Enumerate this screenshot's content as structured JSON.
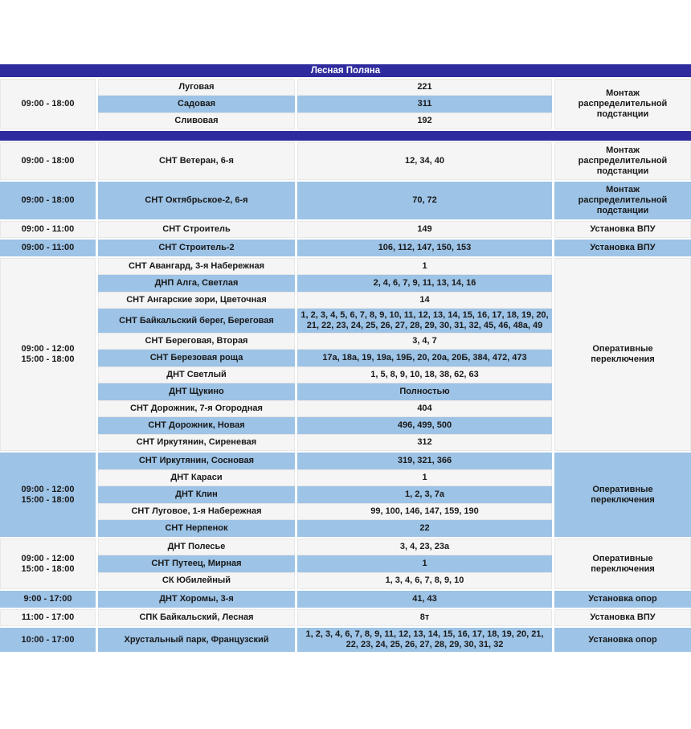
{
  "table": {
    "title": "Лесная Поляна"
  },
  "colors": {
    "title_bar_bg": "#2e2b9e",
    "title_text": "#ffffff",
    "highlight_row_bg": "#9dc3e6",
    "plain_row_bg": "#f5f5f5",
    "text": "#191919"
  },
  "sections": [
    {
      "time": "09:00 - 18:00",
      "work": "Монтаж распределительной подстанции",
      "rows": [
        {
          "street": "Луговая",
          "numbers": "221"
        },
        {
          "street": "Садовая",
          "numbers": "311"
        },
        {
          "street": "Сливовая",
          "numbers": "192"
        }
      ]
    },
    {
      "time": "09:00 - 18:00",
      "work": "Монтаж распределительной подстанции",
      "rows": [
        {
          "street": "СНТ Ветеран, 6-я",
          "numbers": "12, 34, 40"
        }
      ]
    },
    {
      "time": "09:00 - 18:00",
      "work": "Монтаж распределительной подстанции",
      "rows": [
        {
          "street": "СНТ Октябрьское-2, 6-я",
          "numbers": "70, 72"
        }
      ]
    },
    {
      "time": "09:00 - 11:00",
      "work": "Установка ВПУ",
      "rows": [
        {
          "street": "СНТ Строитель",
          "numbers": "149"
        }
      ]
    },
    {
      "time": "09:00 - 11:00",
      "work": "Установка ВПУ",
      "rows": [
        {
          "street": "СНТ Строитель-2",
          "numbers": "106, 112, 147, 150, 153"
        }
      ]
    },
    {
      "time": "09:00 - 12:00",
      "time2": "15:00 - 18:00",
      "work": "Оперативные переключения",
      "rows": [
        {
          "street": "СНТ Авангард, 3-я Набережная",
          "numbers": "1"
        },
        {
          "street": "ДНП Алга, Светлая",
          "numbers": "2, 4, 6, 7, 9, 11, 13, 14, 16"
        },
        {
          "street": "СНТ Ангарские зори, Цветочная",
          "numbers": "14"
        },
        {
          "street": "СНТ Байкальский берег, Береговая",
          "numbers": "1, 2, 3, 4, 5, 6, 7, 8, 9, 10, 11, 12, 13, 14, 15, 16, 17, 18, 19, 20, 21, 22, 23, 24, 25, 26, 27, 28, 29, 30, 31, 32, 45, 46, 48а, 49"
        },
        {
          "street": "СНТ Береговая, Вторая",
          "numbers": "3, 4, 7"
        },
        {
          "street": "СНТ Березовая роща",
          "numbers": "17а, 18а, 19, 19а, 19Б, 20, 20а, 20Б, 384, 472, 473"
        },
        {
          "street": "ДНТ Светлый",
          "numbers": "1, 5, 8, 9, 10, 18, 38, 62, 63"
        },
        {
          "street": "ДНТ Щукино",
          "numbers": "Полностью"
        },
        {
          "street": "СНТ Дорожник, 7-я Огородная",
          "numbers": "404"
        },
        {
          "street": "СНТ Дорожник, Новая",
          "numbers": "496, 499, 500"
        },
        {
          "street": "СНТ Иркутянин, Сиреневая",
          "numbers": "312"
        }
      ]
    },
    {
      "time": "09:00 - 12:00",
      "time2": "15:00 - 18:00",
      "work": "Оперативные переключения",
      "rows": [
        {
          "street": "СНТ Иркутянин, Сосновая",
          "numbers": "319, 321, 366"
        },
        {
          "street": "ДНТ Караси",
          "numbers": "1"
        },
        {
          "street": "ДНТ Клин",
          "numbers": "1, 2, 3, 7а"
        },
        {
          "street": "СНТ Луговое, 1-я Набережная",
          "numbers": "99, 100, 146, 147, 159, 190"
        },
        {
          "street": "СНТ Нерпенок",
          "numbers": "22"
        }
      ]
    },
    {
      "time": "09:00 - 12:00",
      "time2": "15:00 - 18:00",
      "work": "Оперативные переключения",
      "rows": [
        {
          "street": "ДНТ Полесье",
          "numbers": "3, 4, 23, 23а"
        },
        {
          "street": "СНТ Путеец, Мирная",
          "numbers": "1"
        },
        {
          "street": "СК Юбилейный",
          "numbers": "1, 3, 4, 6, 7, 8, 9, 10"
        }
      ]
    },
    {
      "time": "9:00 - 17:00",
      "work": "Установка опор",
      "rows": [
        {
          "street": "ДНТ Хоромы, 3-я",
          "numbers": "41, 43"
        }
      ]
    },
    {
      "time": "11:00 - 17:00",
      "work": "Установка ВПУ",
      "rows": [
        {
          "street": "СПК Байкальский, Лесная",
          "numbers": "8т"
        }
      ]
    },
    {
      "time": "10:00 - 17:00",
      "work": "Установка опор",
      "rows": [
        {
          "street": "Хрустальный парк, Французский",
          "numbers": "1, 2, 3, 4, 6, 7, 8, 9, 11, 12, 13, 14, 15, 16, 17, 18, 19, 20, 21, 22, 23, 24, 25, 26, 27, 28, 29, 30, 31, 32"
        }
      ]
    }
  ]
}
